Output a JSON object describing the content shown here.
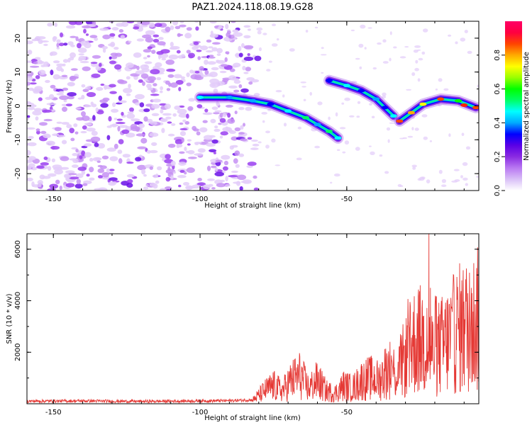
{
  "figure": {
    "title": "PAZ1.2024.118.08.19.G28"
  },
  "colors": {
    "axis": "#000000",
    "snr_line": "#e53935",
    "spectrogram_background": "#ffffff"
  },
  "colorbar": {
    "label": "Normalized spectral amplitude",
    "range": [
      0.0,
      1.0
    ],
    "ticks": [
      "0.0",
      "0.2",
      "0.4",
      "0.6",
      "0.8"
    ],
    "colormap": [
      "#ffffff",
      "#d9bff7",
      "#b979f2",
      "#8a2be2",
      "#5a00e6",
      "#0000ff",
      "#00aaff",
      "#00ffff",
      "#00ff66",
      "#00ff00",
      "#99ff00",
      "#ffff00",
      "#ffaa00",
      "#ff4400",
      "#ff0040",
      "#ff0066"
    ]
  },
  "chart_data": [
    {
      "type": "heatmap",
      "title": "PAZ1.2024.118.08.19.G28",
      "xlabel": "Height of straight line (km)",
      "ylabel": "Frequency (Hz)",
      "xlim": [
        -159,
        -5
      ],
      "ylim": [
        -25,
        25
      ],
      "xticks": [
        "-150",
        "-100",
        "-50"
      ],
      "yticks": [
        "-20",
        "-10",
        "0",
        "10",
        "20"
      ],
      "grid": false,
      "background_noise_region": {
        "x": [
          -159,
          -80
        ],
        "y": [
          -25,
          25
        ],
        "amplitude": 0.15
      },
      "features": [
        {
          "name": "track-1",
          "x": [
            -100,
            -90,
            -82,
            -76,
            -70,
            -64,
            -60,
            -56,
            -53
          ],
          "y": [
            2.5,
            2.5,
            1.5,
            0.5,
            -1.5,
            -3.5,
            -5.5,
            -7.5,
            -9.5
          ],
          "amplitude": 0.5
        },
        {
          "name": "track-2",
          "x": [
            -56,
            -50,
            -45,
            -40,
            -37,
            -34
          ],
          "y": [
            7.5,
            6,
            4.5,
            2,
            -0.5,
            -3
          ],
          "amplitude": 0.45
        },
        {
          "name": "track-3",
          "x": [
            -32,
            -28,
            -24,
            -18,
            -12,
            -6
          ],
          "y": [
            -4.5,
            -2,
            0.5,
            2,
            1.5,
            -0.5
          ],
          "amplitude": 0.85
        }
      ]
    },
    {
      "type": "line",
      "xlabel": "Height of straight line (km)",
      "ylabel": "SNR (10 * v/v)",
      "xlim": [
        -159,
        -5
      ],
      "ylim": [
        0,
        6600
      ],
      "xticks": [
        "-150",
        "-100",
        "-50"
      ],
      "yticks": [
        "2000",
        "4000",
        "6000"
      ],
      "grid": false,
      "series": [
        {
          "x": [
            -159,
            -140,
            -120,
            -100,
            -90,
            -82,
            -78,
            -75,
            -72,
            -69,
            -66,
            -63,
            -60,
            -57,
            -54,
            -51,
            -48,
            -45,
            -42,
            -39,
            -36,
            -33,
            -30,
            -27,
            -24,
            -21,
            -18,
            -15,
            -12,
            -9,
            -7,
            -5
          ],
          "y": [
            100,
            110,
            90,
            110,
            120,
            150,
            500,
            700,
            500,
            900,
            1100,
            600,
            900,
            500,
            400,
            700,
            600,
            900,
            1000,
            900,
            1400,
            1200,
            1800,
            2400,
            2500,
            2000,
            2200,
            2500,
            2900,
            3000,
            3150,
            3250
          ]
        }
      ],
      "peaks": [
        {
          "x": -22,
          "y": 6600
        },
        {
          "x": -21.5,
          "y": 4500
        },
        {
          "x": -24,
          "y": 3400
        }
      ]
    }
  ]
}
